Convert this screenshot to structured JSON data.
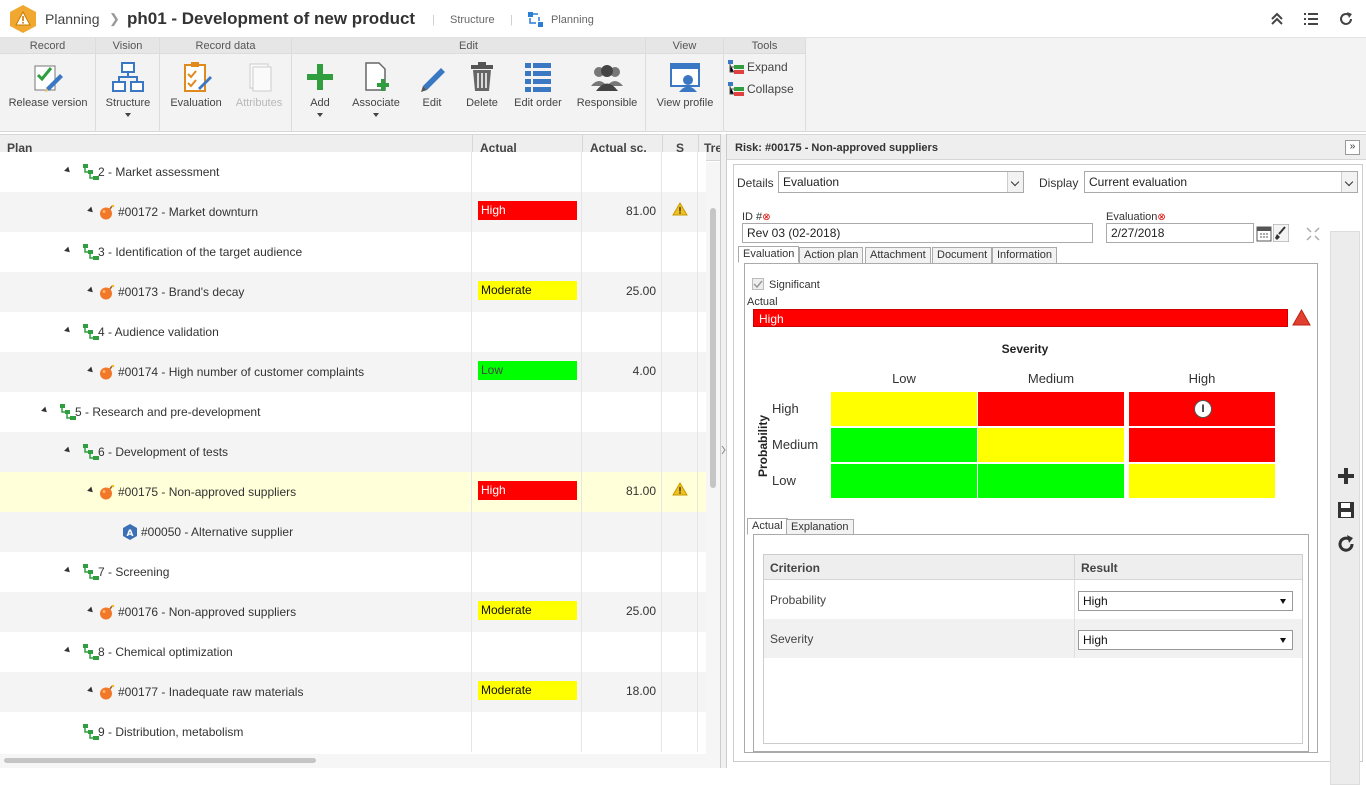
{
  "topbar": {
    "app": "Planning",
    "title": "ph01 - Development of new product",
    "links": [
      "Structure",
      "Planning"
    ]
  },
  "ribbon": {
    "groups": [
      "Record",
      "Vision",
      "Record data",
      "Edit",
      "View",
      "Tools"
    ],
    "buttons": {
      "release_version": "Release version",
      "structure": "Structure",
      "evaluation": "Evaluation",
      "attributes": "Attributes",
      "add": "Add",
      "associate": "Associate",
      "edit": "Edit",
      "delete": "Delete",
      "edit_order": "Edit order",
      "responsible": "Responsible",
      "view_profile": "View profile"
    },
    "tools": [
      "Expand",
      "Collapse"
    ]
  },
  "grid": {
    "columns": [
      "Plan",
      "Actual",
      "Actual sc.",
      "S",
      "Tre"
    ],
    "rows": [
      {
        "label": "2 - Market assessment",
        "type": "step",
        "level": 1,
        "actual": "",
        "score": "",
        "warn": false
      },
      {
        "label": "#00172 - Market downturn",
        "type": "risk",
        "level": 2,
        "actual": "High",
        "score": "81.00",
        "warn": true
      },
      {
        "label": "3 - Identification of the target audience",
        "type": "step",
        "level": 1,
        "actual": "",
        "score": "",
        "warn": false
      },
      {
        "label": "#00173 - Brand's decay",
        "type": "risk",
        "level": 2,
        "actual": "Moderate",
        "score": "25.00",
        "warn": false
      },
      {
        "label": "4 - Audience validation",
        "type": "step",
        "level": 1,
        "actual": "",
        "score": "",
        "warn": false
      },
      {
        "label": "#00174 - High number of customer complaints",
        "type": "risk",
        "level": 2,
        "actual": "Low",
        "score": "4.00",
        "warn": false
      },
      {
        "label": "5 - Research and pre-development",
        "type": "step",
        "level": 0,
        "actual": "",
        "score": "",
        "warn": false
      },
      {
        "label": "6 - Development of tests",
        "type": "step",
        "level": 1,
        "actual": "",
        "score": "",
        "warn": false
      },
      {
        "label": "#00175 - Non-approved suppliers",
        "type": "risk",
        "level": 2,
        "actual": "High",
        "score": "81.00",
        "warn": true,
        "selected": true
      },
      {
        "label": "#00050 - Alternative supplier",
        "type": "action",
        "level": 3,
        "actual": "",
        "score": "",
        "warn": false
      },
      {
        "label": "7 - Screening",
        "type": "step",
        "level": 1,
        "actual": "",
        "score": "",
        "warn": false
      },
      {
        "label": "#00176 - Non-approved suppliers",
        "type": "risk",
        "level": 2,
        "actual": "Moderate",
        "score": "25.00",
        "warn": false
      },
      {
        "label": "8 - Chemical optimization",
        "type": "step",
        "level": 1,
        "actual": "",
        "score": "",
        "warn": false
      },
      {
        "label": "#00177 - Inadequate raw materials",
        "type": "risk",
        "level": 2,
        "actual": "Moderate",
        "score": "18.00",
        "warn": false
      },
      {
        "label": "9 - Distribution, metabolism",
        "type": "step",
        "level": 1,
        "actual": "",
        "score": "",
        "warn": false
      }
    ]
  },
  "level_colors": {
    "High": "#ff0000",
    "Moderate": "#ffff00",
    "Low": "#00ff00"
  },
  "detail": {
    "title": "Risk: #00175 - Non-approved suppliers",
    "details_label": "Details",
    "details_value": "Evaluation",
    "display_label": "Display",
    "display_value": "Current evaluation",
    "id_label": "ID #",
    "id_value": "Rev 03 (02-2018)",
    "eval_label": "Evaluation",
    "eval_value": "2/27/2018",
    "tabs": [
      "Evaluation",
      "Action plan",
      "Attachment",
      "Document",
      "Information"
    ],
    "significant_label": "Significant",
    "actual_label": "Actual",
    "actual_value": "High",
    "matrix": {
      "title": "Severity",
      "y_title": "Probability",
      "cols": [
        "Low",
        "Medium",
        "High"
      ],
      "rows": [
        "High",
        "Medium",
        "Low"
      ],
      "cells": [
        [
          "#ffff00",
          "#ff0000",
          "#ff0000"
        ],
        [
          "#00ff00",
          "#ffff00",
          "#ff0000"
        ],
        [
          "#00ff00",
          "#00ff00",
          "#ffff00"
        ]
      ],
      "current_marker": "I"
    },
    "sub_tabs": [
      "Actual",
      "Explanation"
    ],
    "criteria_headers": [
      "Criterion",
      "Result"
    ],
    "criteria": [
      {
        "name": "Probability",
        "result": "High"
      },
      {
        "name": "Severity",
        "result": "High"
      }
    ]
  }
}
